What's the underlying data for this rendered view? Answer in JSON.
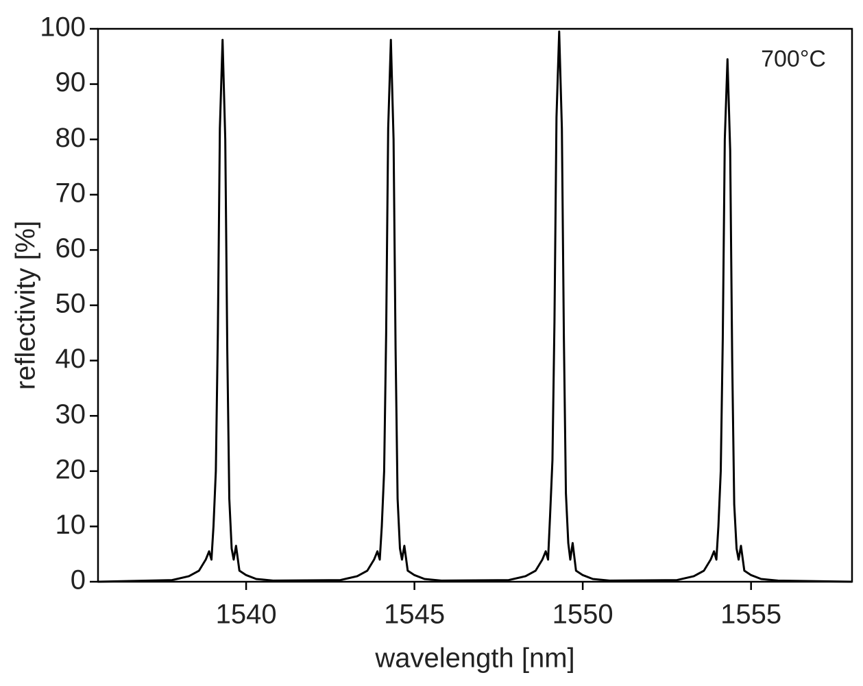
{
  "chart_data": {
    "type": "line",
    "xlabel": "wavelength [nm]",
    "ylabel": "reflectivity [%]",
    "annotation": "700°C",
    "color": "#000000",
    "x": [
      1535.6,
      1537.8,
      1538.3,
      1538.6,
      1538.8,
      1538.9,
      1538.97,
      1539.03,
      1539.1,
      1539.16,
      1539.22,
      1539.3,
      1539.38,
      1539.44,
      1539.5,
      1539.57,
      1539.63,
      1539.7,
      1539.8,
      1540.0,
      1540.3,
      1540.8,
      1542.8,
      1543.3,
      1543.6,
      1543.8,
      1543.9,
      1543.97,
      1544.03,
      1544.1,
      1544.16,
      1544.22,
      1544.3,
      1544.38,
      1544.44,
      1544.5,
      1544.57,
      1544.63,
      1544.7,
      1544.8,
      1545.0,
      1545.3,
      1545.8,
      1547.8,
      1548.3,
      1548.6,
      1548.8,
      1548.9,
      1548.97,
      1549.03,
      1549.1,
      1549.16,
      1549.22,
      1549.3,
      1549.38,
      1549.44,
      1549.5,
      1549.57,
      1549.63,
      1549.7,
      1549.8,
      1550.0,
      1550.3,
      1550.8,
      1552.8,
      1553.3,
      1553.6,
      1553.8,
      1553.9,
      1553.97,
      1554.03,
      1554.1,
      1554.16,
      1554.22,
      1554.3,
      1554.38,
      1554.44,
      1554.5,
      1554.57,
      1554.63,
      1554.7,
      1554.8,
      1555.0,
      1555.3,
      1555.8,
      1558.0
    ],
    "values": [
      0,
      0.3,
      1,
      2,
      4,
      5.5,
      4,
      10,
      20,
      45,
      82,
      98,
      80,
      42,
      15,
      6,
      4,
      6.5,
      2,
      1.2,
      0.5,
      0.2,
      0.3,
      1,
      2,
      4,
      5.5,
      4,
      10,
      20,
      45,
      82,
      98,
      80,
      42,
      15,
      6,
      4,
      6.5,
      2,
      1.2,
      0.5,
      0.2,
      0.3,
      1,
      2,
      4,
      5.5,
      4,
      12,
      22,
      47,
      84,
      99.5,
      82,
      44,
      16,
      7,
      4,
      7,
      2,
      1.2,
      0.5,
      0.2,
      0.3,
      1,
      2,
      4,
      5.5,
      4,
      10,
      20,
      44,
      80,
      94.5,
      78,
      40,
      14,
      6,
      4,
      6.5,
      2,
      1.2,
      0.5,
      0.2,
      0
    ],
    "xlim": [
      1535.6,
      1558.0
    ],
    "ylim": [
      0,
      100
    ],
    "xticks": [
      1540,
      1545,
      1550,
      1555
    ],
    "yticks": [
      0,
      10,
      20,
      30,
      40,
      50,
      60,
      70,
      80,
      90,
      100
    ]
  }
}
